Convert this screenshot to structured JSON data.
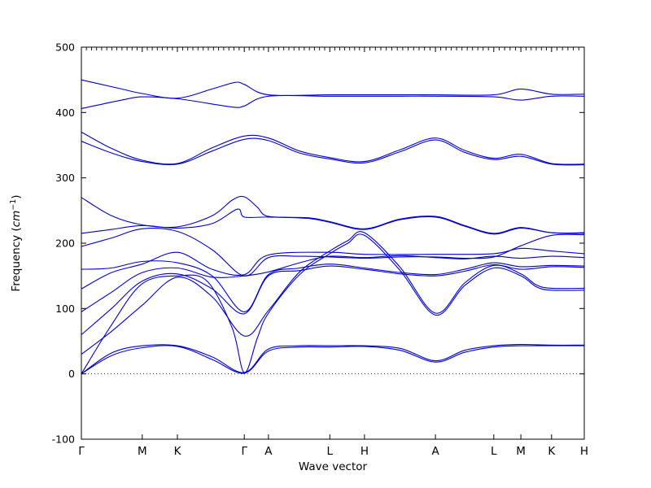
{
  "figure": {
    "background": "#ffffff",
    "line_color": "#0000cd",
    "axis_color": "#000000",
    "ylabel_prefix": "Frequency (",
    "ylabel_math": "cm",
    "ylabel_sup": "−1",
    "ylabel_suffix": ")"
  },
  "chart_data": {
    "type": "line",
    "xlabel": "Wave vector",
    "ylabel": "Frequency (cm^-1)",
    "ylim": [
      -100,
      500
    ],
    "yticks": [
      -100,
      0,
      100,
      200,
      300,
      400,
      500
    ],
    "xtick_labels": [
      "Γ",
      "M",
      "K",
      "Γ",
      "A",
      "L",
      "H",
      "A",
      "L",
      "M",
      "K",
      "H"
    ],
    "xtick_positions": [
      0,
      0.121,
      0.191,
      0.324,
      0.372,
      0.494,
      0.563,
      0.704,
      0.82,
      0.874,
      0.935,
      1
    ],
    "zero_line": 0,
    "grid": false,
    "legend": "none",
    "bands": [
      [
        [
          0,
          0
        ],
        [
          0.06,
          28
        ],
        [
          0.121,
          40
        ],
        [
          0.191,
          42
        ],
        [
          0.26,
          22
        ],
        [
          0.324,
          1
        ],
        [
          0.372,
          35
        ],
        [
          0.434,
          41
        ],
        [
          0.494,
          41
        ],
        [
          0.563,
          42
        ],
        [
          0.634,
          36
        ],
        [
          0.704,
          18
        ],
        [
          0.762,
          33
        ],
        [
          0.82,
          41
        ],
        [
          0.874,
          43
        ],
        [
          0.935,
          43
        ],
        [
          1,
          43
        ]
      ],
      [
        [
          0,
          0
        ],
        [
          0.06,
          32
        ],
        [
          0.121,
          43
        ],
        [
          0.191,
          43
        ],
        [
          0.26,
          26
        ],
        [
          0.324,
          2
        ],
        [
          0.372,
          38
        ],
        [
          0.434,
          43
        ],
        [
          0.494,
          43
        ],
        [
          0.563,
          43
        ],
        [
          0.634,
          39
        ],
        [
          0.704,
          20
        ],
        [
          0.762,
          36
        ],
        [
          0.82,
          43
        ],
        [
          0.874,
          45
        ],
        [
          0.935,
          44
        ],
        [
          1,
          44
        ]
      ],
      [
        [
          0,
          0
        ],
        [
          0.06,
          75
        ],
        [
          0.121,
          138
        ],
        [
          0.191,
          150
        ],
        [
          0.25,
          142
        ],
        [
          0.3,
          70
        ],
        [
          0.324,
          2
        ],
        [
          0.35,
          55
        ],
        [
          0.372,
          93
        ],
        [
          0.434,
          152
        ],
        [
          0.494,
          184
        ],
        [
          0.53,
          200
        ],
        [
          0.563,
          212
        ],
        [
          0.634,
          158
        ],
        [
          0.704,
          90
        ],
        [
          0.762,
          135
        ],
        [
          0.82,
          162
        ],
        [
          0.874,
          150
        ],
        [
          0.905,
          133
        ],
        [
          0.935,
          128
        ],
        [
          1,
          128
        ]
      ],
      [
        [
          0,
          30
        ],
        [
          0.06,
          65
        ],
        [
          0.121,
          105
        ],
        [
          0.191,
          148
        ],
        [
          0.26,
          118
        ],
        [
          0.324,
          58
        ],
        [
          0.372,
          97
        ],
        [
          0.434,
          156
        ],
        [
          0.494,
          188
        ],
        [
          0.53,
          204
        ],
        [
          0.563,
          216
        ],
        [
          0.634,
          163
        ],
        [
          0.704,
          93
        ],
        [
          0.762,
          139
        ],
        [
          0.82,
          166
        ],
        [
          0.874,
          153
        ],
        [
          0.905,
          136
        ],
        [
          0.935,
          131
        ],
        [
          1,
          131
        ]
      ],
      [
        [
          0,
          60
        ],
        [
          0.06,
          100
        ],
        [
          0.121,
          142
        ],
        [
          0.191,
          153
        ],
        [
          0.26,
          130
        ],
        [
          0.324,
          92
        ],
        [
          0.372,
          150
        ],
        [
          0.434,
          158
        ],
        [
          0.494,
          165
        ],
        [
          0.563,
          160
        ],
        [
          0.634,
          153
        ],
        [
          0.704,
          150
        ],
        [
          0.762,
          157
        ],
        [
          0.82,
          167
        ],
        [
          0.874,
          160
        ],
        [
          0.935,
          164
        ],
        [
          1,
          163
        ]
      ],
      [
        [
          0,
          95
        ],
        [
          0.06,
          125
        ],
        [
          0.121,
          155
        ],
        [
          0.191,
          162
        ],
        [
          0.26,
          148
        ],
        [
          0.324,
          150
        ],
        [
          0.372,
          156
        ],
        [
          0.434,
          170
        ],
        [
          0.494,
          180
        ],
        [
          0.563,
          178
        ],
        [
          0.634,
          181
        ],
        [
          0.704,
          178
        ],
        [
          0.762,
          176
        ],
        [
          0.82,
          180
        ],
        [
          0.874,
          177
        ],
        [
          0.935,
          180
        ],
        [
          1,
          178
        ]
      ],
      [
        [
          0,
          130
        ],
        [
          0.06,
          155
        ],
        [
          0.121,
          168
        ],
        [
          0.191,
          186
        ],
        [
          0.26,
          160
        ],
        [
          0.324,
          152
        ],
        [
          0.372,
          182
        ],
        [
          0.494,
          186
        ],
        [
          0.563,
          183
        ],
        [
          0.704,
          183
        ],
        [
          0.82,
          184
        ],
        [
          0.874,
          192
        ],
        [
          0.935,
          188
        ],
        [
          1,
          184
        ]
      ],
      [
        [
          0,
          160
        ],
        [
          0.06,
          162
        ],
        [
          0.121,
          172
        ],
        [
          0.191,
          170
        ],
        [
          0.26,
          150
        ],
        [
          0.324,
          95
        ],
        [
          0.372,
          152
        ],
        [
          0.434,
          162
        ],
        [
          0.494,
          168
        ],
        [
          0.563,
          162
        ],
        [
          0.634,
          155
        ],
        [
          0.704,
          152
        ],
        [
          0.762,
          160
        ],
        [
          0.82,
          170
        ],
        [
          0.874,
          164
        ],
        [
          0.935,
          166
        ],
        [
          1,
          165
        ]
      ],
      [
        [
          0,
          195
        ],
        [
          0.06,
          208
        ],
        [
          0.121,
          222
        ],
        [
          0.191,
          218
        ],
        [
          0.26,
          190
        ],
        [
          0.324,
          150
        ],
        [
          0.372,
          178
        ],
        [
          0.434,
          180
        ],
        [
          0.494,
          179
        ],
        [
          0.563,
          177
        ],
        [
          0.634,
          179
        ],
        [
          0.704,
          179
        ],
        [
          0.762,
          177
        ],
        [
          0.82,
          179
        ],
        [
          0.874,
          196
        ],
        [
          0.935,
          212
        ],
        [
          1,
          213
        ]
      ],
      [
        [
          0,
          215
        ],
        [
          0.06,
          221
        ],
        [
          0.121,
          227
        ],
        [
          0.191,
          223
        ],
        [
          0.26,
          230
        ],
        [
          0.31,
          252
        ],
        [
          0.324,
          240
        ],
        [
          0.372,
          240
        ],
        [
          0.45,
          238
        ],
        [
          0.494,
          232
        ],
        [
          0.563,
          221
        ],
        [
          0.634,
          236
        ],
        [
          0.704,
          240
        ],
        [
          0.762,
          226
        ],
        [
          0.82,
          214
        ],
        [
          0.874,
          223
        ],
        [
          0.935,
          216
        ],
        [
          1,
          215
        ]
      ],
      [
        [
          0,
          270
        ],
        [
          0.06,
          242
        ],
        [
          0.121,
          228
        ],
        [
          0.191,
          225
        ],
        [
          0.26,
          242
        ],
        [
          0.3,
          266
        ],
        [
          0.324,
          271
        ],
        [
          0.35,
          255
        ],
        [
          0.372,
          241
        ],
        [
          0.45,
          239
        ],
        [
          0.494,
          233
        ],
        [
          0.563,
          222
        ],
        [
          0.634,
          237
        ],
        [
          0.704,
          241
        ],
        [
          0.762,
          227
        ],
        [
          0.82,
          215
        ],
        [
          0.874,
          224
        ],
        [
          0.935,
          216
        ],
        [
          1,
          216
        ]
      ],
      [
        [
          0,
          370
        ],
        [
          0.06,
          345
        ],
        [
          0.121,
          327
        ],
        [
          0.191,
          322
        ],
        [
          0.26,
          346
        ],
        [
          0.324,
          364
        ],
        [
          0.372,
          361
        ],
        [
          0.434,
          341
        ],
        [
          0.494,
          331
        ],
        [
          0.563,
          325
        ],
        [
          0.634,
          343
        ],
        [
          0.704,
          361
        ],
        [
          0.762,
          342
        ],
        [
          0.82,
          330
        ],
        [
          0.874,
          336
        ],
        [
          0.935,
          322
        ],
        [
          1,
          321
        ]
      ],
      [
        [
          0,
          356
        ],
        [
          0.06,
          338
        ],
        [
          0.121,
          325
        ],
        [
          0.191,
          321
        ],
        [
          0.26,
          341
        ],
        [
          0.324,
          359
        ],
        [
          0.372,
          357
        ],
        [
          0.434,
          338
        ],
        [
          0.494,
          329
        ],
        [
          0.563,
          323
        ],
        [
          0.634,
          340
        ],
        [
          0.704,
          358
        ],
        [
          0.762,
          339
        ],
        [
          0.82,
          328
        ],
        [
          0.874,
          333
        ],
        [
          0.935,
          321
        ],
        [
          1,
          320
        ]
      ],
      [
        [
          0,
          450
        ],
        [
          0.08,
          436
        ],
        [
          0.121,
          429
        ],
        [
          0.191,
          422
        ],
        [
          0.26,
          436
        ],
        [
          0.305,
          446
        ],
        [
          0.324,
          443
        ],
        [
          0.372,
          427
        ],
        [
          0.494,
          427
        ],
        [
          0.634,
          427
        ],
        [
          0.704,
          427
        ],
        [
          0.82,
          427
        ],
        [
          0.874,
          436
        ],
        [
          0.935,
          428
        ],
        [
          1,
          428
        ]
      ],
      [
        [
          0,
          406
        ],
        [
          0.08,
          419
        ],
        [
          0.121,
          424
        ],
        [
          0.191,
          421
        ],
        [
          0.26,
          413
        ],
        [
          0.305,
          408
        ],
        [
          0.324,
          410
        ],
        [
          0.372,
          425
        ],
        [
          0.494,
          425
        ],
        [
          0.634,
          425
        ],
        [
          0.704,
          425
        ],
        [
          0.82,
          424
        ],
        [
          0.874,
          419
        ],
        [
          0.935,
          425
        ],
        [
          1,
          425
        ]
      ]
    ]
  }
}
